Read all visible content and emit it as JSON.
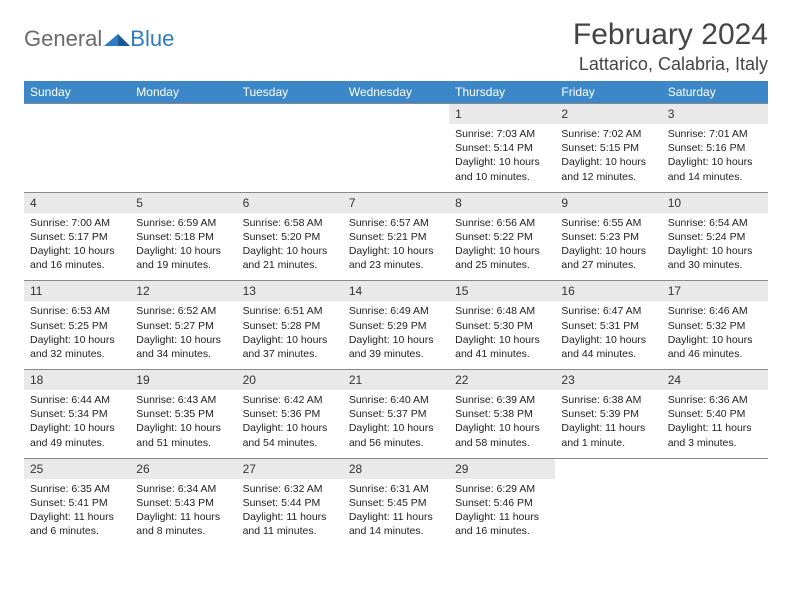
{
  "logo": {
    "general": "General",
    "blue": "Blue"
  },
  "title": "February 2024",
  "location": "Lattarico, Calabria, Italy",
  "colors": {
    "header_bg": "#3b87c8",
    "header_text": "#ffffff",
    "daynum_bg": "#e9e9e9",
    "text": "#222222",
    "logo_gray": "#6b6b6b",
    "logo_blue": "#2d7cc0",
    "divider": "#888888"
  },
  "day_names": [
    "Sunday",
    "Monday",
    "Tuesday",
    "Wednesday",
    "Thursday",
    "Friday",
    "Saturday"
  ],
  "weeks": [
    [
      {
        "empty": true
      },
      {
        "empty": true
      },
      {
        "empty": true
      },
      {
        "empty": true
      },
      {
        "num": "1",
        "sunrise": "Sunrise: 7:03 AM",
        "sunset": "Sunset: 5:14 PM",
        "daylight": "Daylight: 10 hours and 10 minutes."
      },
      {
        "num": "2",
        "sunrise": "Sunrise: 7:02 AM",
        "sunset": "Sunset: 5:15 PM",
        "daylight": "Daylight: 10 hours and 12 minutes."
      },
      {
        "num": "3",
        "sunrise": "Sunrise: 7:01 AM",
        "sunset": "Sunset: 5:16 PM",
        "daylight": "Daylight: 10 hours and 14 minutes."
      }
    ],
    [
      {
        "num": "4",
        "sunrise": "Sunrise: 7:00 AM",
        "sunset": "Sunset: 5:17 PM",
        "daylight": "Daylight: 10 hours and 16 minutes."
      },
      {
        "num": "5",
        "sunrise": "Sunrise: 6:59 AM",
        "sunset": "Sunset: 5:18 PM",
        "daylight": "Daylight: 10 hours and 19 minutes."
      },
      {
        "num": "6",
        "sunrise": "Sunrise: 6:58 AM",
        "sunset": "Sunset: 5:20 PM",
        "daylight": "Daylight: 10 hours and 21 minutes."
      },
      {
        "num": "7",
        "sunrise": "Sunrise: 6:57 AM",
        "sunset": "Sunset: 5:21 PM",
        "daylight": "Daylight: 10 hours and 23 minutes."
      },
      {
        "num": "8",
        "sunrise": "Sunrise: 6:56 AM",
        "sunset": "Sunset: 5:22 PM",
        "daylight": "Daylight: 10 hours and 25 minutes."
      },
      {
        "num": "9",
        "sunrise": "Sunrise: 6:55 AM",
        "sunset": "Sunset: 5:23 PM",
        "daylight": "Daylight: 10 hours and 27 minutes."
      },
      {
        "num": "10",
        "sunrise": "Sunrise: 6:54 AM",
        "sunset": "Sunset: 5:24 PM",
        "daylight": "Daylight: 10 hours and 30 minutes."
      }
    ],
    [
      {
        "num": "11",
        "sunrise": "Sunrise: 6:53 AM",
        "sunset": "Sunset: 5:25 PM",
        "daylight": "Daylight: 10 hours and 32 minutes."
      },
      {
        "num": "12",
        "sunrise": "Sunrise: 6:52 AM",
        "sunset": "Sunset: 5:27 PM",
        "daylight": "Daylight: 10 hours and 34 minutes."
      },
      {
        "num": "13",
        "sunrise": "Sunrise: 6:51 AM",
        "sunset": "Sunset: 5:28 PM",
        "daylight": "Daylight: 10 hours and 37 minutes."
      },
      {
        "num": "14",
        "sunrise": "Sunrise: 6:49 AM",
        "sunset": "Sunset: 5:29 PM",
        "daylight": "Daylight: 10 hours and 39 minutes."
      },
      {
        "num": "15",
        "sunrise": "Sunrise: 6:48 AM",
        "sunset": "Sunset: 5:30 PM",
        "daylight": "Daylight: 10 hours and 41 minutes."
      },
      {
        "num": "16",
        "sunrise": "Sunrise: 6:47 AM",
        "sunset": "Sunset: 5:31 PM",
        "daylight": "Daylight: 10 hours and 44 minutes."
      },
      {
        "num": "17",
        "sunrise": "Sunrise: 6:46 AM",
        "sunset": "Sunset: 5:32 PM",
        "daylight": "Daylight: 10 hours and 46 minutes."
      }
    ],
    [
      {
        "num": "18",
        "sunrise": "Sunrise: 6:44 AM",
        "sunset": "Sunset: 5:34 PM",
        "daylight": "Daylight: 10 hours and 49 minutes."
      },
      {
        "num": "19",
        "sunrise": "Sunrise: 6:43 AM",
        "sunset": "Sunset: 5:35 PM",
        "daylight": "Daylight: 10 hours and 51 minutes."
      },
      {
        "num": "20",
        "sunrise": "Sunrise: 6:42 AM",
        "sunset": "Sunset: 5:36 PM",
        "daylight": "Daylight: 10 hours and 54 minutes."
      },
      {
        "num": "21",
        "sunrise": "Sunrise: 6:40 AM",
        "sunset": "Sunset: 5:37 PM",
        "daylight": "Daylight: 10 hours and 56 minutes."
      },
      {
        "num": "22",
        "sunrise": "Sunrise: 6:39 AM",
        "sunset": "Sunset: 5:38 PM",
        "daylight": "Daylight: 10 hours and 58 minutes."
      },
      {
        "num": "23",
        "sunrise": "Sunrise: 6:38 AM",
        "sunset": "Sunset: 5:39 PM",
        "daylight": "Daylight: 11 hours and 1 minute."
      },
      {
        "num": "24",
        "sunrise": "Sunrise: 6:36 AM",
        "sunset": "Sunset: 5:40 PM",
        "daylight": "Daylight: 11 hours and 3 minutes."
      }
    ],
    [
      {
        "num": "25",
        "sunrise": "Sunrise: 6:35 AM",
        "sunset": "Sunset: 5:41 PM",
        "daylight": "Daylight: 11 hours and 6 minutes."
      },
      {
        "num": "26",
        "sunrise": "Sunrise: 6:34 AM",
        "sunset": "Sunset: 5:43 PM",
        "daylight": "Daylight: 11 hours and 8 minutes."
      },
      {
        "num": "27",
        "sunrise": "Sunrise: 6:32 AM",
        "sunset": "Sunset: 5:44 PM",
        "daylight": "Daylight: 11 hours and 11 minutes."
      },
      {
        "num": "28",
        "sunrise": "Sunrise: 6:31 AM",
        "sunset": "Sunset: 5:45 PM",
        "daylight": "Daylight: 11 hours and 14 minutes."
      },
      {
        "num": "29",
        "sunrise": "Sunrise: 6:29 AM",
        "sunset": "Sunset: 5:46 PM",
        "daylight": "Daylight: 11 hours and 16 minutes."
      },
      {
        "empty": true
      },
      {
        "empty": true
      }
    ]
  ]
}
